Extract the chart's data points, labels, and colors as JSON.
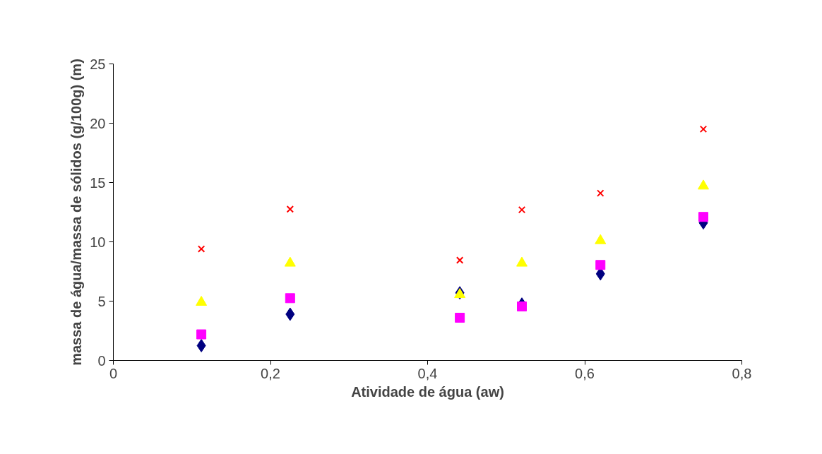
{
  "chart_data": {
    "type": "scatter",
    "xlabel": "Atividade de água (aw)",
    "ylabel": "massa de água/massa de sólidos (g/100g) (m)",
    "x": [
      0.112,
      0.225,
      0.441,
      0.52,
      0.62,
      0.751
    ],
    "series": [
      {
        "color": "#000080",
        "marker": "diamond",
        "values": [
          1.25,
          3.9,
          5.7,
          4.75,
          7.3,
          11.6
        ]
      },
      {
        "color": "#ff00ff",
        "marker": "square",
        "values": [
          2.2,
          5.25,
          3.6,
          4.55,
          8.05,
          12.1
        ]
      },
      {
        "color": "#ffff00",
        "marker": "triangle",
        "values": [
          4.9,
          8.2,
          5.55,
          8.2,
          10.1,
          14.7
        ]
      },
      {
        "color": "#ff0000",
        "marker": "cross",
        "values": [
          9.4,
          12.75,
          8.45,
          12.7,
          14.1,
          19.5
        ]
      }
    ],
    "xlim": [
      0,
      0.8
    ],
    "xticks": [
      0,
      {
        "value": 0.2,
        "label": "0,2"
      },
      {
        "value": 0.4,
        "label": "0,4"
      },
      {
        "value": 0.6,
        "label": "0,6"
      },
      {
        "value": 0.8,
        "label": "0,8"
      }
    ],
    "ylim": [
      0,
      25
    ],
    "yticks": [
      0,
      5,
      10,
      15,
      20,
      25
    ],
    "grid": false
  }
}
